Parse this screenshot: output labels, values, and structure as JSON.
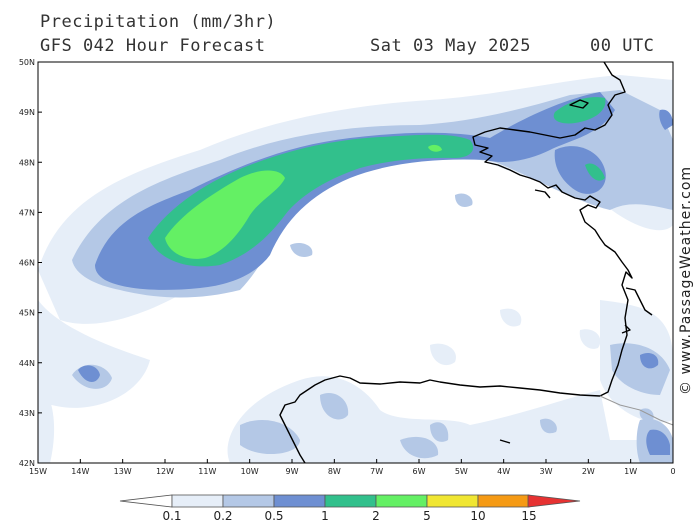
{
  "header": {
    "title": "Precipitation (mm/3hr)",
    "subtitle": "GFS 042 Hour Forecast",
    "date": "Sat 03 May 2025",
    "time": "00 UTC"
  },
  "credit": "© www.PassageWeather.com",
  "map": {
    "lon_range": [
      -15,
      0
    ],
    "lat_range": [
      42,
      50
    ],
    "lon_labels": [
      "15W",
      "14W",
      "13W",
      "12W",
      "11W",
      "10W",
      "9W",
      "8W",
      "7W",
      "6W",
      "5W",
      "4W",
      "3W",
      "2W",
      "1W",
      "0"
    ],
    "lat_labels": [
      "42N",
      "43N",
      "44N",
      "45N",
      "46N",
      "47N",
      "48N",
      "49N",
      "50N"
    ]
  },
  "legend": {
    "labels": [
      "0.1",
      "0.2",
      "0.5",
      "1",
      "2",
      "5",
      "10",
      "15"
    ],
    "colors": [
      "#e6eef8",
      "#b4c8e6",
      "#6e8fd2",
      "#32c08c",
      "#64f064",
      "#f0e632",
      "#f59a14",
      "#e63232"
    ]
  }
}
